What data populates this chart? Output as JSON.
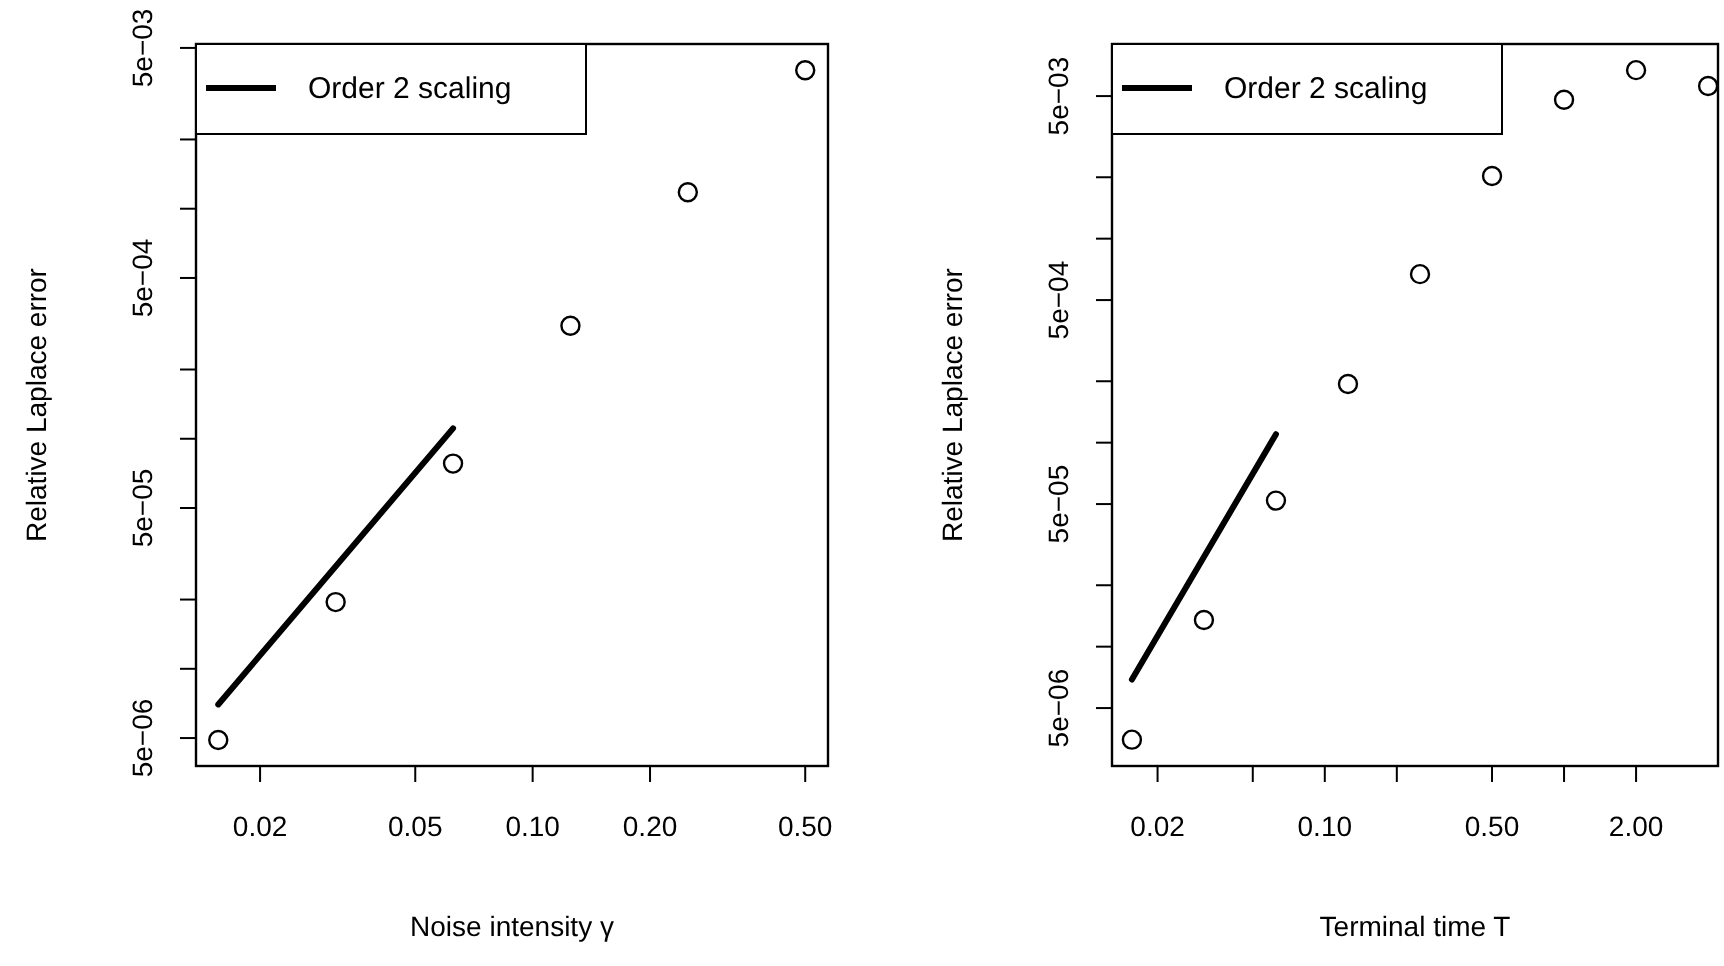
{
  "chart_data": [
    {
      "type": "scatter",
      "xlabel": "Noise intensity γ",
      "ylabel": "Relative Laplace error",
      "log": "xy",
      "legend": "top left",
      "marker": "circle",
      "xlim": [
        0.0137,
        0.572
      ],
      "ylim": [
        3.78e-06,
        0.0052
      ],
      "xticks": [
        {
          "value": 0.02,
          "label": "0.02"
        },
        {
          "value": 0.05,
          "label": "0.05"
        },
        {
          "value": 0.1,
          "label": "0.10"
        },
        {
          "value": 0.2,
          "label": "0.20"
        },
        {
          "value": 0.5,
          "label": "0.50"
        }
      ],
      "yticks": [
        {
          "value": 0.005,
          "label": "5e−03"
        },
        {
          "value": 0.002,
          "label": null
        },
        {
          "value": 0.001,
          "label": null
        },
        {
          "value": 0.0005,
          "label": "5e−04"
        },
        {
          "value": 0.0002,
          "label": null
        },
        {
          "value": 0.0001,
          "label": null
        },
        {
          "value": 5e-05,
          "label": "5e−05"
        },
        {
          "value": 2e-05,
          "label": null
        },
        {
          "value": 1e-05,
          "label": null
        },
        {
          "value": 5e-06,
          "label": "5e−06"
        }
      ],
      "series": [
        {
          "type": "scatter",
          "color": "#000000",
          "x": [
            0.015625,
            0.03125,
            0.0625,
            0.125,
            0.25,
            0.5
          ],
          "values": [
            4.9e-06,
            1.95e-05,
            7.8e-05,
            0.00031,
            0.00118,
            0.004
          ]
        },
        {
          "type": "line",
          "name": "Order 2 scaling",
          "color": "#000000",
          "marker": "none",
          "x": [
            0.015625,
            0.0625
          ],
          "values": [
            7e-06,
            0.000111
          ]
        }
      ]
    },
    {
      "type": "scatter",
      "xlabel": "Terminal time T",
      "ylabel": "Relative Laplace error",
      "log": "xy",
      "legend": "top left",
      "marker": "circle",
      "xlim": [
        0.0129,
        4.4
      ],
      "ylim": [
        2.6e-06,
        0.009
      ],
      "xticks": [
        {
          "value": 0.02,
          "label": "0.02"
        },
        {
          "value": 0.05,
          "label": null
        },
        {
          "value": 0.1,
          "label": "0.10"
        },
        {
          "value": 0.2,
          "label": null
        },
        {
          "value": 0.5,
          "label": "0.50"
        },
        {
          "value": 1,
          "label": null
        },
        {
          "value": 2,
          "label": "2.00"
        }
      ],
      "yticks": [
        {
          "value": 0.005,
          "label": "5e−03"
        },
        {
          "value": 0.002,
          "label": null
        },
        {
          "value": 0.001,
          "label": null
        },
        {
          "value": 0.0005,
          "label": "5e−04"
        },
        {
          "value": 0.0002,
          "label": null
        },
        {
          "value": 0.0001,
          "label": null
        },
        {
          "value": 5e-05,
          "label": "5e−05"
        },
        {
          "value": 2e-05,
          "label": null
        },
        {
          "value": 1e-05,
          "label": null
        },
        {
          "value": 5e-06,
          "label": "5e−06"
        }
      ],
      "series": [
        {
          "type": "scatter",
          "color": "#000000",
          "x": [
            0.015625,
            0.03125,
            0.0625,
            0.125,
            0.25,
            0.5,
            1,
            2,
            4
          ],
          "values": [
            3.5e-06,
            1.35e-05,
            5.2e-05,
            0.000194,
            0.00067,
            0.00203,
            0.0048,
            0.0067,
            0.0056
          ]
        },
        {
          "type": "line",
          "name": "Order 2 scaling",
          "color": "#000000",
          "marker": "none",
          "x": [
            0.015625,
            0.0625
          ],
          "values": [
            6.9e-06,
            0.00011
          ]
        }
      ]
    }
  ]
}
